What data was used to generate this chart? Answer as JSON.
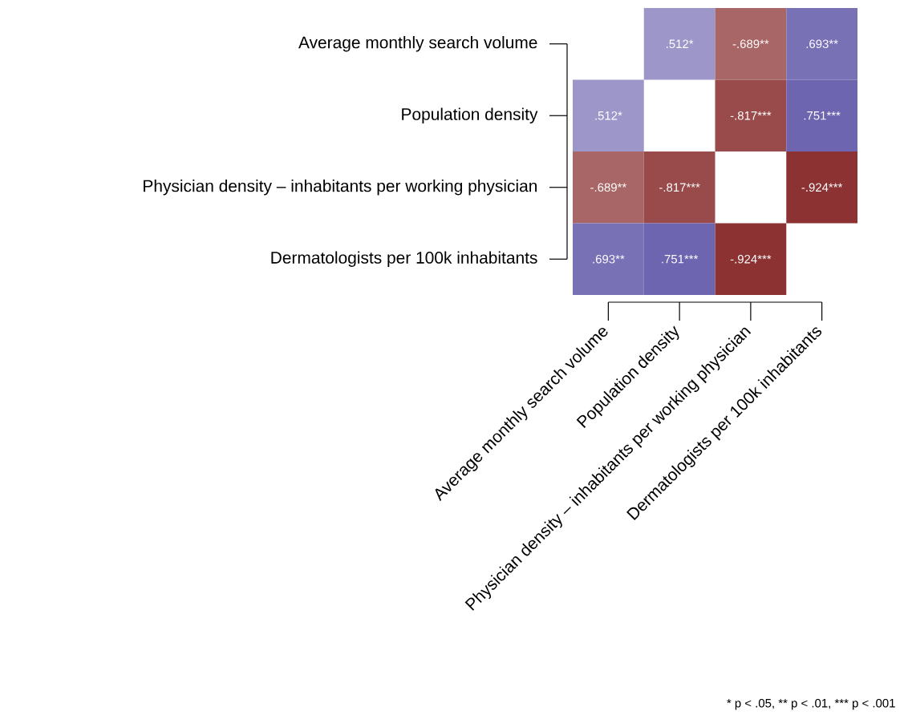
{
  "chart_data": {
    "type": "heatmap",
    "categories": [
      "Average monthly search volume",
      "Population density",
      "Physician density – inhabitants per working physician",
      "Dermatologists per 100k inhabitants"
    ],
    "y_categories": [
      "Average monthly search volume",
      "Population density",
      "Physician density – inhabitants per working physician",
      "Dermatologists per 100k inhabitants"
    ],
    "cells": [
      [
        null,
        0.512,
        -0.689,
        0.693
      ],
      [
        0.512,
        null,
        -0.817,
        0.751
      ],
      [
        -0.689,
        -0.817,
        null,
        -0.924
      ],
      [
        0.693,
        0.751,
        -0.924,
        null
      ]
    ],
    "cell_labels": [
      [
        null,
        ".512*",
        "-.689**",
        ".693**"
      ],
      [
        ".512*",
        null,
        "-.817***",
        ".751***"
      ],
      [
        "-.689**",
        "-.817***",
        null,
        "-.924***"
      ],
      [
        ".693**",
        ".751***",
        "-.924***",
        null
      ]
    ],
    "annotations": [
      "* p < .05,",
      "** p < .01,",
      "*** p < .001"
    ]
  }
}
